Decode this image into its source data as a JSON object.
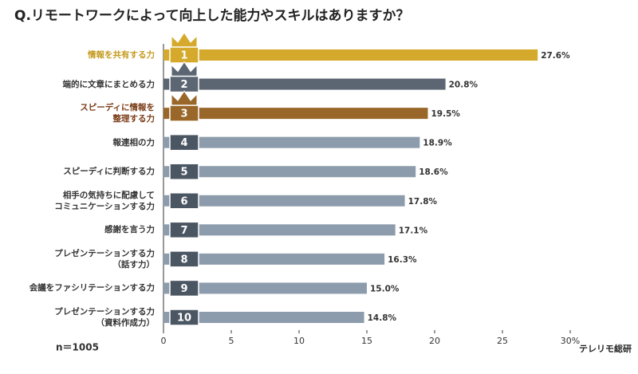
{
  "chart_data": {
    "type": "bar",
    "orientation": "horizontal",
    "title": "Q.リモートワークによって向上した能力やスキルはありますか？",
    "categories": [
      "情報を共有する力",
      "端的に文章にまとめる力",
      "スピーディに情報を\n整理する力",
      "報連相の力",
      "スピーディに判断する力",
      "相手の気持ちに配慮して\nコミュニケーションする力",
      "感謝を言う力",
      "プレゼンテーションする力\n（話す力）",
      "会議をファシリテーションする力",
      "プレゼンテーションする力\n（資料作成力）"
    ],
    "ranks": [
      1,
      2,
      3,
      4,
      5,
      6,
      7,
      8,
      9,
      10
    ],
    "values": [
      27.6,
      20.8,
      19.5,
      18.9,
      18.6,
      17.8,
      17.1,
      16.3,
      15.0,
      14.8
    ],
    "value_labels": [
      "27.6%",
      "20.8%",
      "19.5%",
      "18.9%",
      "18.6%",
      "17.8%",
      "17.1%",
      "16.3%",
      "15.0%",
      "14.8%"
    ],
    "colors": [
      "#d5aa2c",
      "#5c6672",
      "#9a672b",
      "#8d9cac",
      "#8d9cac",
      "#8d9cac",
      "#8d9cac",
      "#8d9cac",
      "#8d9cac",
      "#8d9cac"
    ],
    "xlim": [
      0,
      30
    ],
    "xticks": [
      0,
      5,
      10,
      15,
      20,
      25,
      {
        "value": 30,
        "label": "30%"
      }
    ],
    "note": "n＝1005",
    "brand": "テレリモ総研"
  }
}
